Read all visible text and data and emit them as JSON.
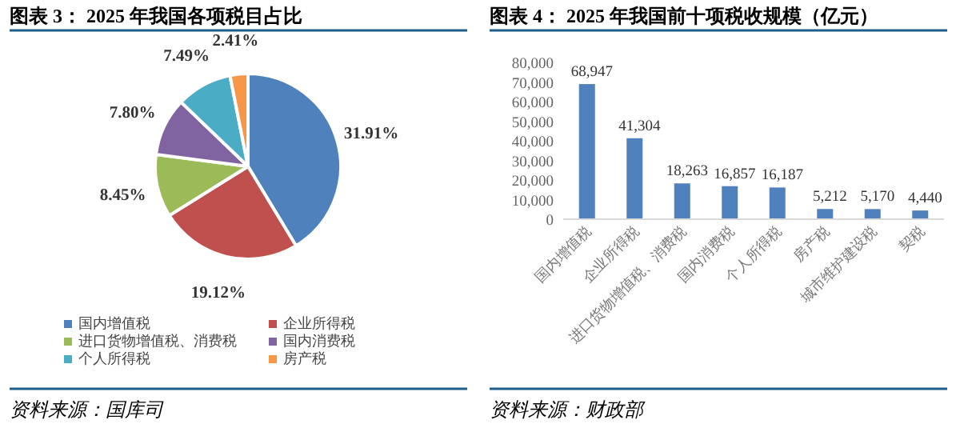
{
  "chart_data": [
    {
      "type": "pie",
      "title": "图表 3：  2025 年我国各项税目占比",
      "categories": [
        "国内增值税",
        "企业所得税",
        "进口货物增值税、消费税",
        "国内消费税",
        "个人所得税",
        "房产税"
      ],
      "values": [
        31.91,
        19.12,
        8.45,
        7.8,
        7.49,
        2.41
      ],
      "value_labels": [
        "31.91%",
        "19.12%",
        "8.45%",
        "7.80%",
        "7.49%",
        "2.41%"
      ],
      "colors": [
        "#4f81bd",
        "#c0504d",
        "#9bbb59",
        "#8064a2",
        "#4bacc6",
        "#f79646"
      ],
      "legend": "bottom",
      "annotations": [
        "资料来源：国库司"
      ]
    },
    {
      "type": "bar",
      "title": "图表 4：  2025 年我国前十项税收规模（亿元）",
      "categories": [
        "国内增值税",
        "企业所得税",
        "进口货物增值税、消费税",
        "国内消费税",
        "个人所得税",
        "房产税",
        "城市维护建设税",
        "契税"
      ],
      "values": [
        68947,
        41304,
        18263,
        16857,
        16187,
        5212,
        5170,
        4440
      ],
      "value_labels": [
        "68,947",
        "41,304",
        "18,263",
        "16,857",
        "16,187",
        "5,212",
        "5,170",
        "4,440"
      ],
      "color": "#4f81bd",
      "ylim": [
        0,
        80000
      ],
      "yticks": [
        {
          "value": 0,
          "label": "0"
        },
        {
          "value": 10000,
          "label": "10,000"
        },
        {
          "value": 20000,
          "label": "20,000"
        },
        {
          "value": 30000,
          "label": "30,000"
        },
        {
          "value": 40000,
          "label": "40,000"
        },
        {
          "value": 50000,
          "label": "50,000"
        },
        {
          "value": 60000,
          "label": "60,000"
        },
        {
          "value": 70000,
          "label": "70,000"
        },
        {
          "value": 80000,
          "label": "80,000"
        }
      ],
      "grid": false,
      "annotations": [
        "资料来源：财政部"
      ]
    }
  ]
}
